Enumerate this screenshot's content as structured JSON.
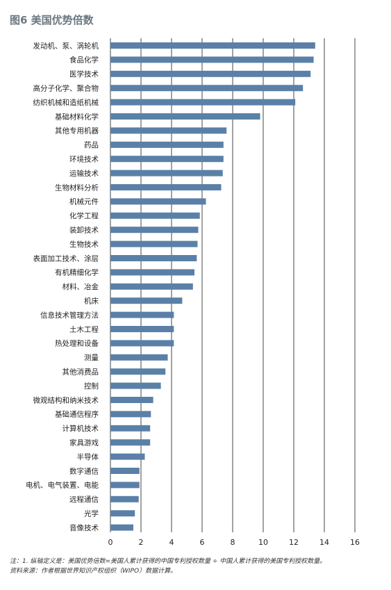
{
  "title": "图6 美国优势倍数",
  "notes": {
    "line1": "注：1. 纵轴定义是：美国优势倍数=美国人累计获得的中国专利授权数量 ÷ 中国人累计获得的美国专利授权数量。",
    "line2": "资料来源：作者根据世界知识产权组织（WIPO）数据计算。"
  },
  "chart_data": {
    "type": "bar",
    "orientation": "horizontal",
    "categories": [
      "发动机、泵、涡轮机",
      "食品化学",
      "医学技术",
      "高分子化学、聚合物",
      "纺织机械和造纸机械",
      "基础材料化学",
      "其他专用机器",
      "药品",
      "环境技术",
      "运输技术",
      "生物材料分析",
      "机械元件",
      "化学工程",
      "装卸技术",
      "生物技术",
      "表面加工技术、涂层",
      "有机精细化学",
      "材料、冶金",
      "机床",
      "信息技术管理方法",
      "土木工程",
      "热处理和设备",
      "测量",
      "其他消费品",
      "控制",
      "微观结构和纳米技术",
      "基础通信程序",
      "计算机技术",
      "家具游戏",
      "半导体",
      "数字通信",
      "电机、电气装置、电能",
      "远程通信",
      "光学",
      "音像技术"
    ],
    "values": [
      13.4,
      13.3,
      13.1,
      12.6,
      12.1,
      9.8,
      7.6,
      7.4,
      7.4,
      7.35,
      7.25,
      6.25,
      5.85,
      5.75,
      5.7,
      5.65,
      5.5,
      5.4,
      4.7,
      4.15,
      4.15,
      4.15,
      3.75,
      3.6,
      3.3,
      2.8,
      2.65,
      2.6,
      2.6,
      2.25,
      1.9,
      1.9,
      1.85,
      1.6,
      1.5
    ],
    "xlim": [
      0,
      16
    ],
    "xticks": [
      "0",
      "2",
      "4",
      "6",
      "8",
      "10",
      "12",
      "14",
      "16"
    ],
    "grid": "vertical",
    "bar_color": "#5a80a7",
    "grid_color": "#444444"
  }
}
